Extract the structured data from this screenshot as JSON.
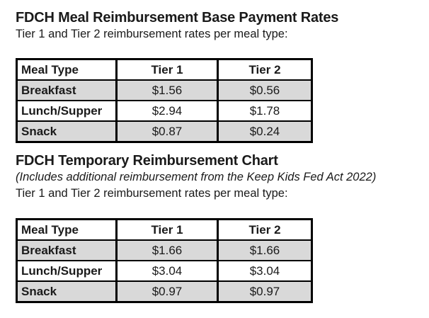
{
  "page": {
    "background": "#ffffff",
    "text_color": "#1a1a1a",
    "table_border_color": "#000000",
    "shaded_row_color": "#d9d9d9"
  },
  "sections": [
    {
      "title": "FDCH Meal Reimbursement Base Payment Rates",
      "subtitle": "Tier 1 and Tier 2 reimbursement rates per meal type:",
      "table": {
        "columns": [
          "Meal Type",
          "Tier 1",
          "Tier 2"
        ],
        "rows": [
          {
            "meal_type": "Breakfast",
            "tier1": "$1.56",
            "tier2": "$0.56"
          },
          {
            "meal_type": "Lunch/Supper",
            "tier1": "$2.94",
            "tier2": "$1.78"
          },
          {
            "meal_type": "Snack",
            "tier1": "$0.87",
            "tier2": "$0.24"
          }
        ]
      }
    },
    {
      "title": "FDCH Temporary Reimbursement Chart",
      "note": "(Includes additional reimbursement from the Keep Kids Fed Act 2022)",
      "subtitle": "Tier 1 and Tier 2 reimbursement rates per meal type:",
      "table": {
        "columns": [
          "Meal Type",
          "Tier 1",
          "Tier 2"
        ],
        "rows": [
          {
            "meal_type": "Breakfast",
            "tier1": "$1.66",
            "tier2": "$1.66"
          },
          {
            "meal_type": "Lunch/Supper",
            "tier1": "$3.04",
            "tier2": "$3.04"
          },
          {
            "meal_type": "Snack",
            "tier1": "$0.97",
            "tier2": "$0.97"
          }
        ]
      }
    }
  ]
}
